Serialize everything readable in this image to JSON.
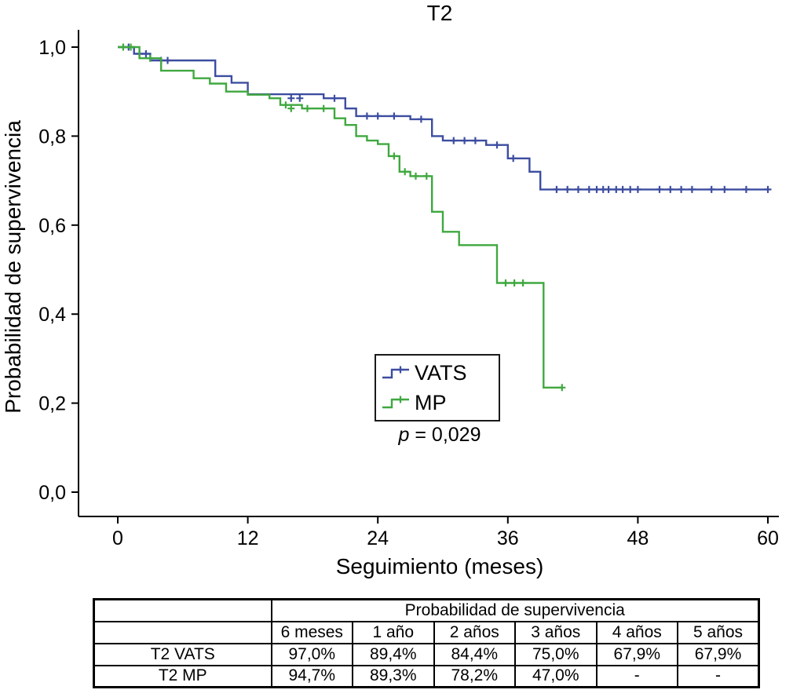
{
  "chart_data": {
    "type": "line",
    "subtype": "kaplan-meier-step",
    "title": "T2",
    "xlabel": "Seguimiento (meses)",
    "ylabel": "Probabilidad de supervivencia",
    "xlim": [
      0,
      60
    ],
    "ylim": [
      0.0,
      1.0
    ],
    "grid": false,
    "legend_position": "center-bottom",
    "xticks": [
      0,
      12,
      24,
      36,
      48,
      60
    ],
    "xtick_labels": [
      "0",
      "12",
      "24",
      "36",
      "48",
      "60"
    ],
    "yticks": [
      0.0,
      0.2,
      0.4,
      0.6,
      0.8,
      1.0
    ],
    "ytick_labels": [
      "0,0",
      "0,2",
      "0,4",
      "0,6",
      "0,8",
      "1,0"
    ],
    "p_value": {
      "symbol": "p",
      "rest": " = 0,029"
    },
    "series": [
      {
        "name": "VATS",
        "color": "#3c4da0",
        "steps": [
          [
            0,
            1.0
          ],
          [
            1.5,
            0.985
          ],
          [
            3,
            0.97
          ],
          [
            9,
            0.935
          ],
          [
            10.5,
            0.92
          ],
          [
            12,
            0.894
          ],
          [
            19,
            0.885
          ],
          [
            21,
            0.862
          ],
          [
            22,
            0.845
          ],
          [
            27,
            0.838
          ],
          [
            29,
            0.8
          ],
          [
            30,
            0.79
          ],
          [
            34,
            0.78
          ],
          [
            36,
            0.75
          ],
          [
            38,
            0.72
          ],
          [
            39,
            0.68
          ],
          [
            60,
            0.68
          ]
        ],
        "censor_marks": [
          [
            1,
            1.0
          ],
          [
            2,
            0.985
          ],
          [
            2.6,
            0.985
          ],
          [
            4,
            0.97
          ],
          [
            4.6,
            0.97
          ],
          [
            16,
            0.885
          ],
          [
            16.8,
            0.885
          ],
          [
            20,
            0.885
          ],
          [
            23,
            0.845
          ],
          [
            24,
            0.845
          ],
          [
            25.5,
            0.845
          ],
          [
            28,
            0.838
          ],
          [
            31,
            0.79
          ],
          [
            32,
            0.79
          ],
          [
            33,
            0.79
          ],
          [
            35,
            0.78
          ],
          [
            36.5,
            0.75
          ],
          [
            40.5,
            0.68
          ],
          [
            41.5,
            0.68
          ],
          [
            42.5,
            0.68
          ],
          [
            43.5,
            0.68
          ],
          [
            44.2,
            0.68
          ],
          [
            44.8,
            0.68
          ],
          [
            45.3,
            0.68
          ],
          [
            46,
            0.68
          ],
          [
            46.6,
            0.68
          ],
          [
            47.3,
            0.68
          ],
          [
            48,
            0.68
          ],
          [
            50,
            0.68
          ],
          [
            51,
            0.68
          ],
          [
            52,
            0.68
          ],
          [
            53,
            0.68
          ],
          [
            54.8,
            0.68
          ],
          [
            56,
            0.68
          ],
          [
            58,
            0.68
          ],
          [
            60,
            0.68
          ]
        ]
      },
      {
        "name": "MP",
        "color": "#3fa83f",
        "steps": [
          [
            0,
            1.0
          ],
          [
            2,
            0.975
          ],
          [
            4,
            0.947
          ],
          [
            7,
            0.93
          ],
          [
            8.5,
            0.918
          ],
          [
            10,
            0.9
          ],
          [
            12,
            0.893
          ],
          [
            14,
            0.885
          ],
          [
            15,
            0.87
          ],
          [
            17,
            0.862
          ],
          [
            20,
            0.84
          ],
          [
            21,
            0.825
          ],
          [
            22,
            0.8
          ],
          [
            23,
            0.79
          ],
          [
            24,
            0.782
          ],
          [
            25,
            0.755
          ],
          [
            26,
            0.72
          ],
          [
            27,
            0.71
          ],
          [
            29,
            0.63
          ],
          [
            30,
            0.585
          ],
          [
            31.5,
            0.555
          ],
          [
            35,
            0.47
          ],
          [
            39.3,
            0.235
          ],
          [
            41,
            0.235
          ]
        ],
        "censor_marks": [
          [
            0.5,
            1.0
          ],
          [
            1.2,
            1.0
          ],
          [
            3,
            0.975
          ],
          [
            15.5,
            0.87
          ],
          [
            16,
            0.862
          ],
          [
            17.5,
            0.862
          ],
          [
            19,
            0.862
          ],
          [
            25.5,
            0.755
          ],
          [
            26.5,
            0.72
          ],
          [
            27.5,
            0.71
          ],
          [
            28.5,
            0.71
          ],
          [
            35.8,
            0.47
          ],
          [
            36.6,
            0.47
          ],
          [
            37.4,
            0.47
          ],
          [
            41,
            0.235
          ]
        ]
      }
    ]
  },
  "table": {
    "header_title": "Probabilidad de supervivencia",
    "columns": [
      "6 meses",
      "1 año",
      "2 años",
      "3 años",
      "4 años",
      "5 años"
    ],
    "rows": [
      {
        "label": "T2 VATS",
        "values": [
          "97,0%",
          "89,4%",
          "84,4%",
          "75,0%",
          "67,9%",
          "67,9%"
        ]
      },
      {
        "label": "T2 MP",
        "values": [
          "94,7%",
          "89,3%",
          "78,2%",
          "47,0%",
          "-",
          "-"
        ]
      }
    ]
  }
}
